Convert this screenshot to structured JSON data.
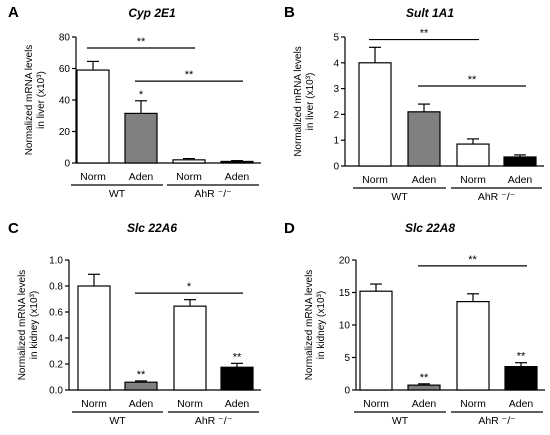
{
  "chart_data": [
    {
      "type": "bar",
      "panel": "A",
      "title": "Cyp 2E1",
      "ylabel_lines": [
        "Normalized mRNA levels",
        "in liver (x10³)"
      ],
      "categories": [
        "Norm",
        "Aden",
        "Norm",
        "Aden"
      ],
      "groups": [
        {
          "label": "WT",
          "span": [
            0,
            1
          ]
        },
        {
          "label": "AhR ⁻/⁻",
          "span": [
            2,
            3
          ]
        }
      ],
      "values": [
        59,
        31.5,
        2,
        1
      ],
      "errors": [
        5.5,
        8,
        0.8,
        0.5
      ],
      "bar_colors": [
        "#ffffff",
        "#808080",
        "#ffffff",
        "#000000"
      ],
      "significance": [
        "",
        "*",
        "",
        ""
      ],
      "brackets": [
        {
          "from": 0,
          "to": 2,
          "y": 73,
          "label": "**"
        },
        {
          "from": 1,
          "to": 3,
          "y": 52,
          "label": "**"
        }
      ],
      "ylim": [
        0,
        80
      ],
      "yticks": [
        0,
        20,
        40,
        60,
        80
      ],
      "ytick_labels": [
        "0",
        "20",
        "40",
        "60",
        "80"
      ]
    },
    {
      "type": "bar",
      "panel": "B",
      "title": "Sult 1A1",
      "ylabel_lines": [
        "Normalized mRNA levels",
        "in liver (x10³)"
      ],
      "categories": [
        "Norm",
        "Aden",
        "Norm",
        "Aden"
      ],
      "groups": [
        {
          "label": "WT",
          "span": [
            0,
            1
          ]
        },
        {
          "label": "AhR ⁻/⁻",
          "span": [
            2,
            3
          ]
        }
      ],
      "values": [
        4.0,
        2.1,
        0.85,
        0.35
      ],
      "errors": [
        0.6,
        0.3,
        0.2,
        0.08
      ],
      "bar_colors": [
        "#ffffff",
        "#808080",
        "#ffffff",
        "#000000"
      ],
      "significance": [
        "",
        "",
        "",
        ""
      ],
      "brackets": [
        {
          "from": 0,
          "to": 2,
          "y": 4.9,
          "label": "**"
        },
        {
          "from": 1,
          "to": 3,
          "y": 3.1,
          "label": "**"
        }
      ],
      "ylim": [
        0,
        5
      ],
      "yticks": [
        0,
        1,
        2,
        3,
        4,
        5
      ],
      "ytick_labels": [
        "0",
        "1",
        "2",
        "3",
        "4",
        "5"
      ]
    },
    {
      "type": "bar",
      "panel": "C",
      "title": "Slc 22A6",
      "ylabel_lines": [
        "Normalized mRNA levels",
        "in kidney (x10³)"
      ],
      "categories": [
        "Norm",
        "Aden",
        "Norm",
        "Aden"
      ],
      "groups": [
        {
          "label": "WT",
          "span": [
            0,
            1
          ]
        },
        {
          "label": "AhR ⁻/⁻",
          "span": [
            2,
            3
          ]
        }
      ],
      "values": [
        0.8,
        0.06,
        0.645,
        0.175
      ],
      "errors": [
        0.09,
        0.01,
        0.05,
        0.03
      ],
      "bar_colors": [
        "#ffffff",
        "#808080",
        "#ffffff",
        "#000000"
      ],
      "significance": [
        "",
        "**",
        "",
        "**"
      ],
      "brackets": [
        {
          "from": 1,
          "to": 3,
          "y": 0.745,
          "label": "*"
        }
      ],
      "ylim": [
        0,
        1.0
      ],
      "yticks": [
        0,
        0.2,
        0.4,
        0.6,
        0.8,
        1.0
      ],
      "ytick_labels": [
        "0.0",
        "0.2",
        "0.4",
        "0.6",
        "0.8",
        "1.0"
      ]
    },
    {
      "type": "bar",
      "panel": "D",
      "title": "Slc 22A8",
      "ylabel_lines": [
        "Normalized mRNA levels",
        "in kidney (x10³)"
      ],
      "categories": [
        "Norm",
        "Aden",
        "Norm",
        "Aden"
      ],
      "groups": [
        {
          "label": "WT",
          "span": [
            0,
            1
          ]
        },
        {
          "label": "AhR ⁻/⁻",
          "span": [
            2,
            3
          ]
        }
      ],
      "values": [
        15.2,
        0.75,
        13.6,
        3.6
      ],
      "errors": [
        1.1,
        0.2,
        1.2,
        0.6
      ],
      "bar_colors": [
        "#ffffff",
        "#808080",
        "#ffffff",
        "#000000"
      ],
      "significance": [
        "",
        "**",
        "",
        "**"
      ],
      "brackets": [
        {
          "from": 1,
          "to": 3,
          "y": 19.1,
          "label": "**"
        }
      ],
      "ylim": [
        0,
        20
      ],
      "yticks": [
        0,
        5,
        10,
        15,
        20
      ],
      "ytick_labels": [
        "0",
        "5",
        "10",
        "15",
        "20"
      ]
    }
  ]
}
